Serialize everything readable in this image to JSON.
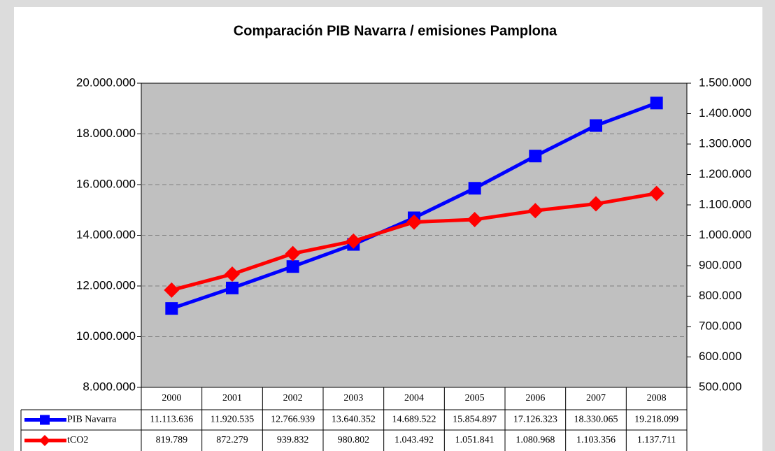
{
  "chart_data": {
    "type": "line",
    "title": "Comparación PIB Navarra / emisiones Pamplona",
    "categories": [
      "2000",
      "2001",
      "2002",
      "2003",
      "2004",
      "2005",
      "2006",
      "2007",
      "2008"
    ],
    "series": [
      {
        "name": "PIB Navarra",
        "color": "#0000ff",
        "marker": "square",
        "values": [
          11113636,
          11920535,
          12766939,
          13640352,
          14689522,
          15854897,
          17126323,
          18330065,
          19218099
        ],
        "value_labels": [
          "11.113.636",
          "11.920.535",
          "12.766.939",
          "13.640.352",
          "14.689.522",
          "15.854.897",
          "17.126.323",
          "18.330.065",
          "19.218.099"
        ]
      },
      {
        "name": "tCO2",
        "color": "#ff0000",
        "marker": "diamond",
        "axis": "y2",
        "values": [
          819789,
          872279,
          939832,
          980802,
          1043492,
          1051841,
          1080968,
          1103356,
          1137711
        ],
        "value_labels": [
          "819.789",
          "872.279",
          "939.832",
          "980.802",
          "1.043.492",
          "1.051.841",
          "1.080.968",
          "1.103.356",
          "1.137.711"
        ]
      }
    ],
    "ylim": [
      8000000,
      20000000
    ],
    "yticks": [
      {
        "value": 8000000,
        "label": "8.000.000"
      },
      {
        "value": 10000000,
        "label": "10.000.000"
      },
      {
        "value": 12000000,
        "label": "12.000.000"
      },
      {
        "value": 14000000,
        "label": "14.000.000"
      },
      {
        "value": 16000000,
        "label": "16.000.000"
      },
      {
        "value": 18000000,
        "label": "18.000.000"
      },
      {
        "value": 20000000,
        "label": "20.000.000"
      }
    ],
    "y2lim": [
      500000,
      1500000
    ],
    "y2ticks": [
      {
        "value": 500000,
        "label": "500.000"
      },
      {
        "value": 600000,
        "label": "600.000"
      },
      {
        "value": 700000,
        "label": "700.000"
      },
      {
        "value": 800000,
        "label": "800.000"
      },
      {
        "value": 900000,
        "label": "900.000"
      },
      {
        "value": 1000000,
        "label": "1.000.000"
      },
      {
        "value": 1100000,
        "label": "1.100.000"
      },
      {
        "value": 1200000,
        "label": "1.200.000"
      },
      {
        "value": 1300000,
        "label": "1.300.000"
      },
      {
        "value": 1400000,
        "label": "1.400.000"
      },
      {
        "value": 1500000,
        "label": "1.500.000"
      }
    ],
    "grid": true,
    "plot_background": "#c0c0c0",
    "data_table": true
  }
}
